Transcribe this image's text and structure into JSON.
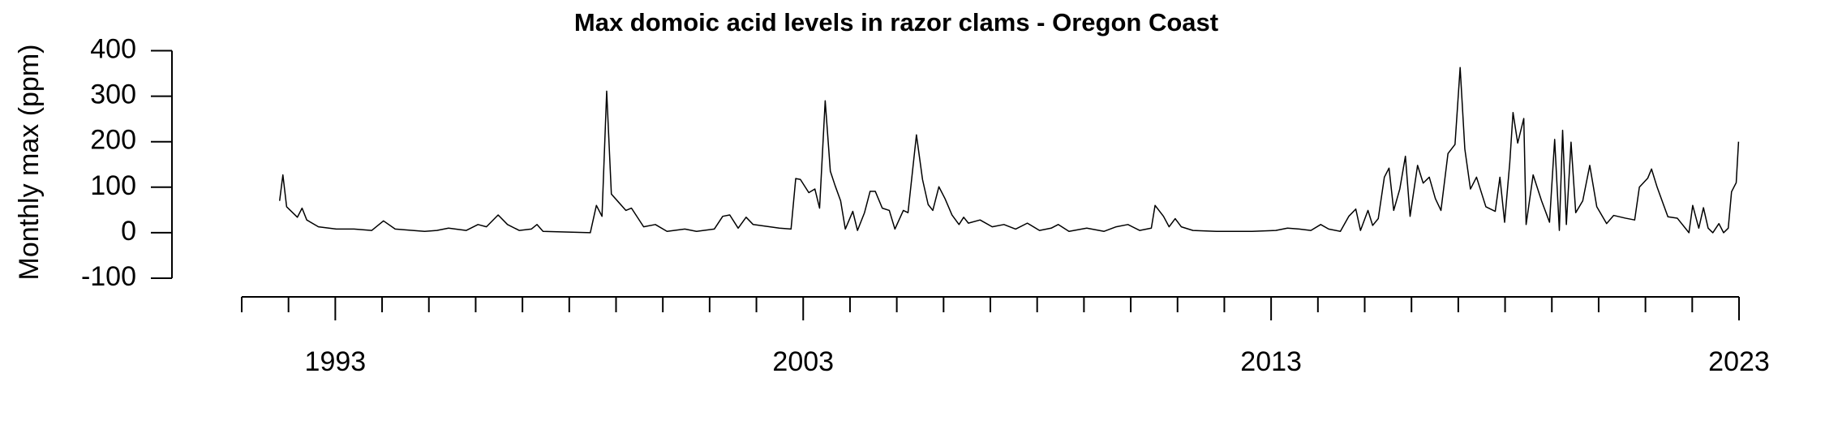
{
  "chart_data": {
    "type": "line",
    "title": "Max domoic acid levels in razor clams - Oregon Coast",
    "y_label": "Monthly max (ppm)",
    "color": "#000000",
    "x": [
      1991.81,
      1991.88,
      1991.96,
      1992.19,
      1992.29,
      1992.39,
      1992.64,
      1993.02,
      1993.4,
      1993.78,
      1994.03,
      1994.28,
      1994.66,
      1994.91,
      1995.17,
      1995.42,
      1995.8,
      1996.05,
      1996.23,
      1996.48,
      1996.68,
      1996.93,
      1997.19,
      1997.31,
      1997.44,
      1998.45,
      1998.58,
      1998.7,
      1998.8,
      1998.9,
      1999.21,
      1999.33,
      1999.59,
      1999.84,
      2000.09,
      2000.47,
      2000.72,
      2001.1,
      2001.28,
      2001.43,
      2001.61,
      2001.78,
      2001.93,
      2002.49,
      2002.74,
      2002.84,
      2002.94,
      2003.12,
      2003.25,
      2003.35,
      2003.47,
      2003.58,
      2003.68,
      2003.8,
      2003.9,
      2004.06,
      2004.16,
      2004.31,
      2004.43,
      2004.54,
      2004.69,
      2004.84,
      2004.96,
      2005.14,
      2005.24,
      2005.42,
      2005.55,
      2005.67,
      2005.77,
      2005.9,
      2006.03,
      2006.18,
      2006.33,
      2006.43,
      2006.53,
      2006.78,
      2007.04,
      2007.29,
      2007.54,
      2007.79,
      2008.05,
      2008.3,
      2008.45,
      2008.68,
      2009.06,
      2009.43,
      2009.69,
      2009.94,
      2010.19,
      2010.44,
      2010.52,
      2010.7,
      2010.82,
      2010.95,
      2011.08,
      2011.33,
      2011.83,
      2012.59,
      2013.1,
      2013.35,
      2013.6,
      2013.85,
      2014.06,
      2014.23,
      2014.48,
      2014.66,
      2014.81,
      2014.91,
      2015.07,
      2015.17,
      2015.29,
      2015.42,
      2015.52,
      2015.62,
      2015.75,
      2015.87,
      2015.97,
      2016.13,
      2016.25,
      2016.38,
      2016.51,
      2016.63,
      2016.78,
      2016.93,
      2017.04,
      2017.14,
      2017.26,
      2017.39,
      2017.59,
      2017.79,
      2017.89,
      2017.99,
      2018.1,
      2018.17,
      2018.27,
      2018.4,
      2018.45,
      2018.6,
      2018.78,
      2018.95,
      2019.06,
      2019.16,
      2019.23,
      2019.31,
      2019.41,
      2019.51,
      2019.66,
      2019.81,
      2019.96,
      2020.17,
      2020.32,
      2020.57,
      2020.77,
      2020.87,
      2021.05,
      2021.13,
      2021.25,
      2021.48,
      2021.68,
      2021.93,
      2022.01,
      2022.14,
      2022.24,
      2022.34,
      2022.44,
      2022.57,
      2022.67,
      2022.77,
      2022.84,
      2022.94,
      2022.99
    ],
    "values": [
      70,
      127,
      57,
      34,
      54,
      28,
      13,
      8,
      8,
      5,
      26,
      8,
      5,
      3,
      5,
      10,
      5,
      18,
      13,
      39,
      18,
      5,
      8,
      18,
      3,
      0,
      60,
      36,
      311,
      85,
      49,
      54,
      13,
      18,
      3,
      8,
      3,
      8,
      36,
      39,
      10,
      34,
      18,
      10,
      8,
      119,
      117,
      88,
      96,
      54,
      290,
      135,
      104,
      70,
      8,
      47,
      5,
      44,
      91,
      91,
      54,
      49,
      8,
      49,
      44,
      215,
      117,
      62,
      49,
      101,
      75,
      39,
      18,
      34,
      21,
      28,
      13,
      18,
      8,
      21,
      5,
      10,
      18,
      3,
      10,
      3,
      13,
      18,
      5,
      10,
      60,
      36,
      13,
      31,
      13,
      5,
      3,
      3,
      5,
      10,
      8,
      5,
      18,
      8,
      3,
      36,
      52,
      5,
      49,
      16,
      31,
      122,
      142,
      49,
      96,
      168,
      36,
      148,
      109,
      122,
      75,
      49,
      174,
      194,
      363,
      184,
      96,
      122,
      57,
      47,
      122,
      23,
      153,
      264,
      197,
      251,
      18,
      127,
      70,
      23,
      205,
      5,
      225,
      18,
      199,
      44,
      70,
      148,
      57,
      20,
      38,
      32,
      28,
      100,
      120,
      140,
      100,
      35,
      32,
      0,
      60,
      10,
      55,
      10,
      0,
      20,
      0,
      10,
      90,
      110,
      200
    ],
    "xlim": [
      1991,
      2023
    ],
    "ylim": [
      -100,
      400
    ],
    "xticks": [
      1993,
      2003,
      2013,
      2023
    ],
    "xticks_minor": [
      1991,
      1992,
      1994,
      1995,
      1996,
      1997,
      1998,
      1999,
      2000,
      2001,
      2002,
      2004,
      2005,
      2006,
      2007,
      2008,
      2009,
      2010,
      2011,
      2012,
      2014,
      2015,
      2016,
      2017,
      2018,
      2019,
      2020,
      2021,
      2022
    ],
    "yticks": [
      -100,
      0,
      100,
      200,
      300,
      400
    ]
  }
}
